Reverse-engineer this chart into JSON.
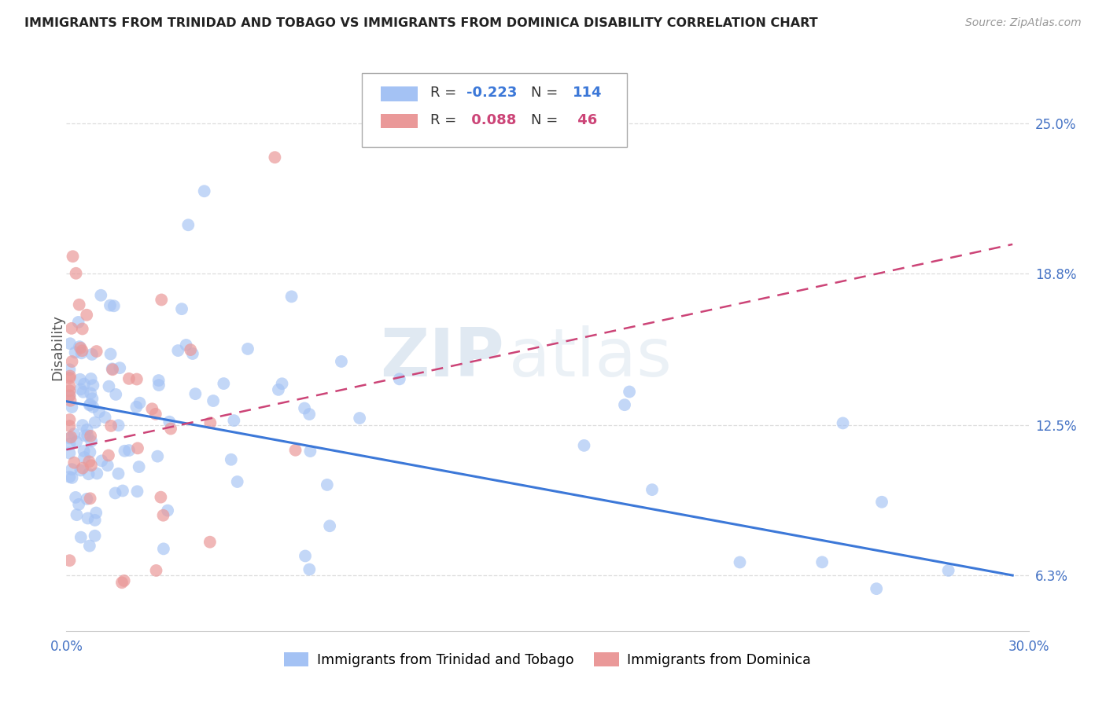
{
  "title": "IMMIGRANTS FROM TRINIDAD AND TOBAGO VS IMMIGRANTS FROM DOMINICA DISABILITY CORRELATION CHART",
  "source": "Source: ZipAtlas.com",
  "ylabel": "Disability",
  "xlim": [
    0.0,
    0.3
  ],
  "ylim": [
    0.04,
    0.275
  ],
  "yticks": [
    0.063,
    0.125,
    0.188,
    0.25
  ],
  "ytick_labels": [
    "6.3%",
    "12.5%",
    "18.8%",
    "25.0%"
  ],
  "xtick_labels": [
    "0.0%",
    "",
    "",
    "",
    "",
    "",
    "30.0%"
  ],
  "tt_color": "#a4c2f4",
  "dom_color": "#ea9999",
  "tt_line_color": "#3c78d8",
  "dom_line_color": "#cc4477",
  "background_color": "#ffffff",
  "tt_line_x0": 0.0,
  "tt_line_y0": 0.135,
  "tt_line_x1": 0.295,
  "tt_line_y1": 0.063,
  "dom_line_x0": 0.0,
  "dom_line_y0": 0.115,
  "dom_line_x1": 0.295,
  "dom_line_y1": 0.2,
  "watermark_zip": "ZIP",
  "watermark_atlas": "atlas",
  "legend_r1": "R = ",
  "legend_r1_val": "-0.223",
  "legend_n1": "  N = ",
  "legend_n1_val": "114",
  "legend_r2": "R = ",
  "legend_r2_val": "0.088",
  "legend_n2": "  N = ",
  "legend_n2_val": "46",
  "legend_color_val": "#3c78d8",
  "legend_color_val2": "#cc4477",
  "bottom_label1": "Immigrants from Trinidad and Tobago",
  "bottom_label2": "Immigrants from Dominica"
}
